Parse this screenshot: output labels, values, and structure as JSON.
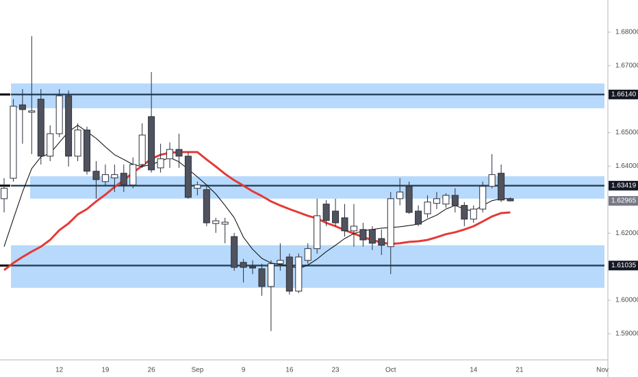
{
  "chart_data": {
    "type": "candlestick",
    "categories": [
      null,
      null,
      null,
      null,
      null,
      null,
      "12",
      null,
      null,
      null,
      null,
      "19",
      null,
      null,
      null,
      null,
      "26",
      null,
      null,
      null,
      null,
      "Sep",
      null,
      null,
      null,
      null,
      "9",
      null,
      null,
      null,
      null,
      "16",
      null,
      null,
      null,
      null,
      "23",
      null,
      null,
      null,
      null,
      null,
      "Oct",
      null,
      null,
      null,
      null,
      null,
      null,
      null,
      null,
      "14",
      null,
      null,
      null,
      null,
      "21",
      null,
      null,
      null,
      null,
      null,
      null,
      null,
      null,
      "Nov"
    ],
    "open": [
      1.6303,
      1.6364,
      1.6583,
      1.6561,
      1.66,
      1.643,
      1.6497,
      1.661,
      1.643,
      1.6508,
      1.6385,
      1.6354,
      1.6365,
      1.6379,
      1.6344,
      1.6405,
      1.6548,
      1.6395,
      1.6422,
      1.645,
      1.643,
      1.6334,
      1.633,
      1.6229,
      1.6227,
      1.619,
      1.6113,
      1.61,
      1.6094,
      1.6041,
      1.6109,
      1.6129,
      1.6027,
      1.6119,
      1.6154,
      1.6287,
      1.6266,
      1.6246,
      1.6207,
      1.6211,
      1.6211,
      1.6184,
      1.616,
      1.6303,
      1.634,
      1.6266,
      1.6258,
      1.6289,
      1.6287,
      1.6313,
      1.6283,
      1.6242,
      1.6272,
      1.634,
      1.6379,
      1.6303,
      null,
      null,
      null,
      null,
      null,
      null,
      null,
      null,
      null,
      null
    ],
    "high": [
      1.6364,
      1.66,
      1.663,
      1.6788,
      1.663,
      1.6522,
      1.663,
      1.6626,
      1.6528,
      1.6518,
      1.6415,
      1.6405,
      1.6405,
      1.6405,
      1.6426,
      1.6528,
      1.6681,
      1.6467,
      1.6471,
      1.6497,
      1.6442,
      1.6354,
      1.634,
      1.6246,
      1.6246,
      1.6201,
      1.6123,
      1.6119,
      1.6109,
      1.6119,
      1.617,
      1.6139,
      1.6139,
      1.617,
      1.6303,
      1.6299,
      1.6303,
      1.6287,
      1.6287,
      1.6231,
      1.6221,
      1.6211,
      1.6323,
      1.6364,
      1.6354,
      1.6283,
      1.6313,
      1.6323,
      1.6319,
      1.6334,
      1.6293,
      1.6283,
      1.6354,
      1.6436,
      1.6405,
      1.6307,
      null,
      null,
      null,
      null,
      null,
      null,
      null,
      null,
      null,
      null
    ],
    "low": [
      1.6262,
      1.6354,
      1.6467,
      1.6436,
      1.6405,
      1.6415,
      1.6487,
      1.6399,
      1.6415,
      1.6375,
      1.6303,
      1.634,
      1.6323,
      1.6323,
      1.6334,
      1.6395,
      1.6381,
      1.6381,
      1.6395,
      1.6395,
      1.6303,
      1.6313,
      1.6221,
      1.6201,
      1.617,
      1.6088,
      1.6053,
      1.6078,
      1.6013,
      1.5908,
      1.6088,
      1.6017,
      1.6021,
      1.6109,
      1.6139,
      1.6221,
      1.6221,
      1.619,
      1.616,
      1.616,
      1.615,
      1.6135,
      1.6078,
      1.6283,
      1.6258,
      1.6221,
      1.6246,
      1.6272,
      1.6276,
      1.6262,
      1.6221,
      1.6231,
      1.6262,
      1.6334,
      1.6293,
      1.6295,
      null,
      null,
      null,
      null,
      null,
      null,
      null,
      null,
      null,
      null
    ],
    "close": [
      1.6334,
      1.6579,
      1.6569,
      1.6565,
      1.643,
      1.6497,
      1.661,
      1.643,
      1.6508,
      1.6385,
      1.636,
      1.6375,
      1.6375,
      1.6344,
      1.6405,
      1.6493,
      1.6389,
      1.6422,
      1.645,
      1.643,
      1.6307,
      1.6344,
      1.6231,
      1.6237,
      1.6233,
      1.6098,
      1.6098,
      1.6096,
      1.6041,
      1.6109,
      1.6119,
      1.6027,
      1.6129,
      1.6154,
      1.6252,
      1.6238,
      1.6231,
      1.6207,
      1.6221,
      1.618,
      1.617,
      1.6164,
      1.6303,
      1.6323,
      1.6262,
      1.6227,
      1.6293,
      1.6303,
      1.6313,
      1.6283,
      1.6242,
      1.6272,
      1.634,
      1.6375,
      1.6299,
      1.62965,
      null,
      null,
      null,
      null,
      null,
      null,
      null,
      null,
      null,
      null
    ],
    "up_color": "#ffffff",
    "down_color": "#50535e",
    "outline_color": "#2a2e39",
    "series": [
      {
        "color": "#e53935",
        "values": [
          1.609,
          1.6111,
          1.6129,
          1.6145,
          1.616,
          1.618,
          1.6209,
          1.6229,
          1.6256,
          1.6272,
          1.6295,
          1.6315,
          1.6338,
          1.6358,
          1.6381,
          1.6401,
          1.6422,
          1.6434,
          1.644,
          1.6442,
          1.6442,
          1.6442,
          1.642,
          1.6399,
          1.6377,
          1.6358,
          1.6342,
          1.6325,
          1.6311,
          1.6295,
          1.6283,
          1.6272,
          1.6262,
          1.6252,
          1.6244,
          1.6231,
          1.6221,
          1.6209,
          1.6199,
          1.6188,
          1.618,
          1.6172,
          1.6168,
          1.617,
          1.6174,
          1.6176,
          1.618,
          1.6188,
          1.6197,
          1.6203,
          1.6211,
          1.6221,
          1.6235,
          1.625,
          1.626,
          1.6262,
          null,
          null,
          null,
          null,
          null,
          null,
          null,
          null,
          null,
          null
        ]
      },
      {
        "color": "#000000",
        "values": [
          1.616,
          1.6242,
          1.6323,
          1.6393,
          1.6428,
          1.6438,
          1.6471,
          1.6503,
          1.6522,
          1.6503,
          1.6483,
          1.6458,
          1.6434,
          1.642,
          1.6405,
          1.6399,
          1.6405,
          1.6415,
          1.6426,
          1.6413,
          1.6391,
          1.6368,
          1.6344,
          1.6317,
          1.6283,
          1.6246,
          1.6188,
          1.6152,
          1.6125,
          1.6111,
          1.6107,
          1.6103,
          1.6094,
          1.6105,
          1.6123,
          1.6145,
          1.6164,
          1.6184,
          1.6199,
          1.6207,
          1.6211,
          1.6215,
          1.6217,
          1.6219,
          1.6223,
          1.6227,
          1.6242,
          1.6254,
          1.6272,
          1.6283,
          1.6272,
          1.6266,
          1.6283,
          1.6297,
          1.6303,
          1.6303,
          null,
          null,
          null,
          null,
          null,
          null,
          null,
          null,
          null,
          null
        ]
      }
    ],
    "zones": [
      [
        1.6573,
        1.6647
      ],
      [
        1.6303,
        1.637
      ],
      [
        1.6037,
        1.6164
      ]
    ],
    "zone_color": "#b7d9fb",
    "levels": [
      {
        "value": 1.6614,
        "label": "1.66140"
      },
      1.63419,
      1.61035
    ],
    "level_color": "#2c4660",
    "last_price": 1.62965,
    "ylim": [
      1.5822,
      1.6896
    ],
    "yticks": [
      {
        "value": 1.59,
        "label": "1.59000"
      },
      {
        "value": 1.6,
        "label": "1.60000"
      },
      {
        "value": 1.62,
        "label": "1.62000"
      },
      {
        "value": 1.64,
        "label": "1.64000"
      },
      {
        "value": 1.65,
        "label": "1.65000"
      },
      {
        "value": 1.67,
        "label": "1.67000"
      },
      {
        "value": 1.68,
        "label": "1.68000"
      }
    ]
  }
}
